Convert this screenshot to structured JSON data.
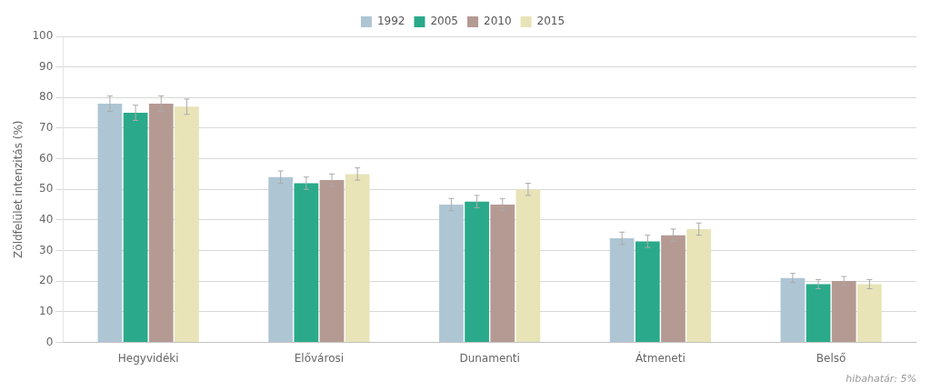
{
  "chart_data": {
    "type": "bar",
    "ylabel": "Zöldfelület intenzitás (%)",
    "footnote": "hibahatár: 5%",
    "categories": [
      "Hegyvidéki",
      "Elővárosi",
      "Dunamenti",
      "Átmeneti",
      "Belső"
    ],
    "series": [
      {
        "name": "1992",
        "color": "#aec6d4",
        "values": [
          78,
          54,
          45,
          34,
          21
        ],
        "errors": [
          2.5,
          2.0,
          2.0,
          2.0,
          1.5
        ]
      },
      {
        "name": "2005",
        "color": "#2aaa8a",
        "values": [
          75,
          52,
          46,
          33,
          19
        ],
        "errors": [
          2.5,
          2.0,
          2.0,
          2.0,
          1.5
        ]
      },
      {
        "name": "2010",
        "color": "#b59a94",
        "values": [
          78,
          53,
          45,
          35,
          20
        ],
        "errors": [
          2.5,
          2.0,
          2.0,
          2.0,
          1.5
        ]
      },
      {
        "name": "2015",
        "color": "#e8e4b8",
        "values": [
          77,
          55,
          50,
          37,
          19
        ],
        "errors": [
          2.5,
          2.0,
          2.0,
          2.0,
          1.5
        ]
      }
    ],
    "ylim": [
      0,
      100
    ],
    "yticks": [
      0,
      10,
      20,
      30,
      40,
      50,
      60,
      70,
      80,
      90,
      100
    ],
    "grid": true,
    "legend": "top"
  }
}
